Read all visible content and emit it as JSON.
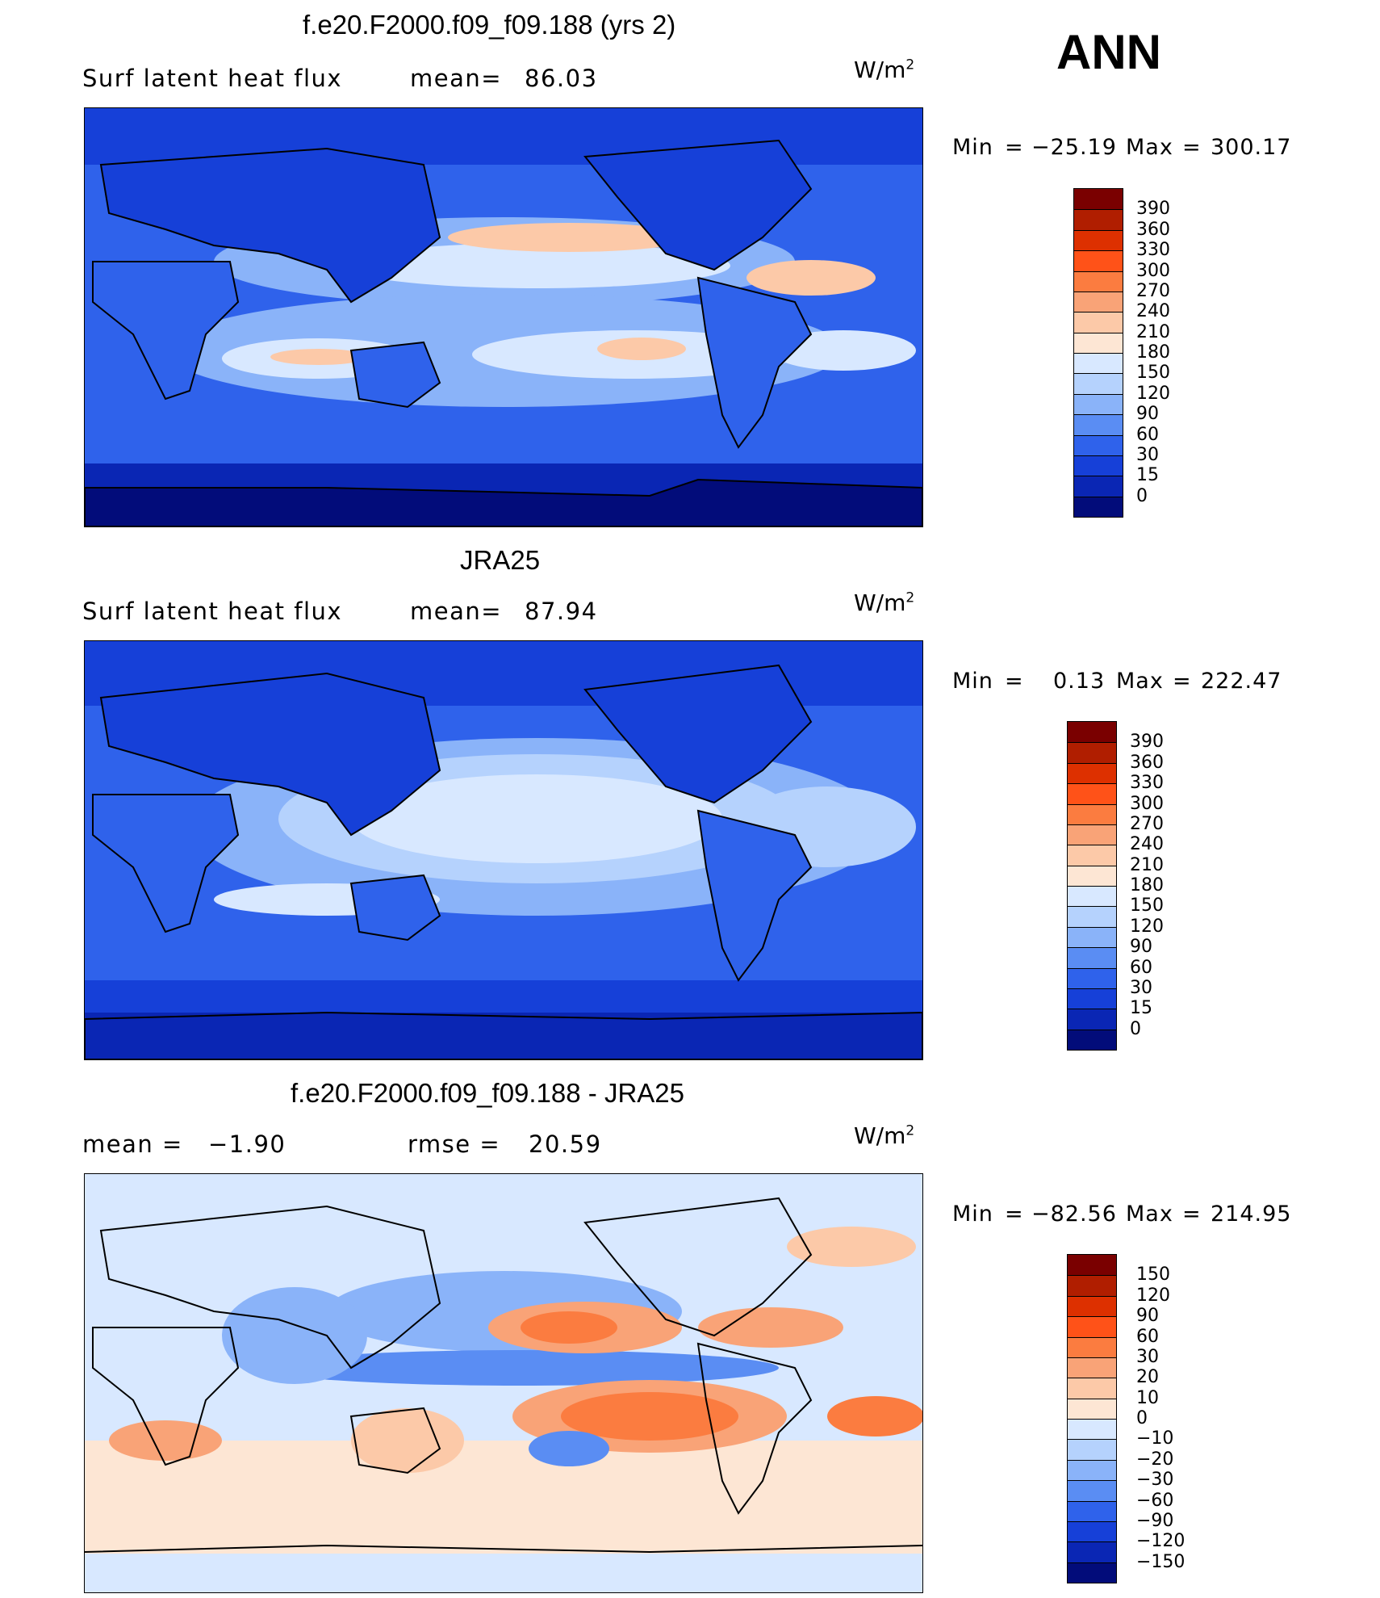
{
  "season": "ANN",
  "panels": [
    {
      "title": "f.e20.F2000.f09_f09.188 (yrs 2)",
      "left_text": "Surf latent heat flux",
      "stat_label": "mean=",
      "stat_value": "86.03",
      "units_base": "W/m",
      "units_exp": "2",
      "min_label": "Min",
      "min_value": "−25.19",
      "max_label": "Max",
      "max_value": "300.17",
      "levels": [
        "390",
        "360",
        "330",
        "300",
        "270",
        "240",
        "210",
        "180",
        "150",
        "120",
        "90",
        "60",
        "30",
        "15",
        "0"
      ],
      "colors": [
        "#7a0000",
        "#b01e00",
        "#dd3000",
        "#ff5218",
        "#fb7c40",
        "#f9a377",
        "#fcc9a8",
        "#fde6d4",
        "#d8e8ff",
        "#b5d2fd",
        "#8ab3f9",
        "#5a8df3",
        "#2f62eb",
        "#1640d8",
        "#0a26b4",
        "#020c7a"
      ]
    },
    {
      "title": "JRA25",
      "left_text": "Surf latent heat flux",
      "stat_label": "mean=",
      "stat_value": "87.94",
      "units_base": "W/m",
      "units_exp": "2",
      "min_label": "Min",
      "min_value": "0.13",
      "max_label": "Max",
      "max_value": "222.47",
      "levels": [
        "390",
        "360",
        "330",
        "300",
        "270",
        "240",
        "210",
        "180",
        "150",
        "120",
        "90",
        "60",
        "30",
        "15",
        "0"
      ],
      "colors": [
        "#7a0000",
        "#b01e00",
        "#dd3000",
        "#ff5218",
        "#fb7c40",
        "#f9a377",
        "#fcc9a8",
        "#fde6d4",
        "#d8e8ff",
        "#b5d2fd",
        "#8ab3f9",
        "#5a8df3",
        "#2f62eb",
        "#1640d8",
        "#0a26b4",
        "#020c7a"
      ]
    },
    {
      "title": "f.e20.F2000.f09_f09.188 - JRA25",
      "left_label": "mean =",
      "left_value": "−1.90",
      "stat_label": "rmse =",
      "stat_value": "20.59",
      "units_base": "W/m",
      "units_exp": "2",
      "min_label": "Min",
      "min_value": "−82.56",
      "max_label": "Max",
      "max_value": "214.95",
      "levels": [
        "150",
        "120",
        "90",
        "60",
        "30",
        "20",
        "10",
        "0",
        "−10",
        "−20",
        "−30",
        "−60",
        "−90",
        "−120",
        "−150"
      ],
      "colors": [
        "#7a0000",
        "#b01e00",
        "#dd3000",
        "#ff5218",
        "#fb7c40",
        "#f9a377",
        "#fcc9a8",
        "#fde6d4",
        "#d8e8ff",
        "#b5d2fd",
        "#8ab3f9",
        "#5a8df3",
        "#2f62eb",
        "#1640d8",
        "#0a26b4",
        "#020c7a"
      ]
    }
  ],
  "chart_data": [
    {
      "type": "heatmap",
      "title": "f.e20.F2000.f09_f09.188 (yrs 2)",
      "variable": "Surf latent heat flux",
      "units": "W/m2",
      "mean": 86.03,
      "min": -25.19,
      "max": 300.17,
      "contour_levels": [
        0,
        15,
        30,
        60,
        90,
        120,
        150,
        180,
        210,
        240,
        270,
        300,
        330,
        360,
        390
      ]
    },
    {
      "type": "heatmap",
      "title": "JRA25",
      "variable": "Surf latent heat flux",
      "units": "W/m2",
      "mean": 87.94,
      "min": 0.13,
      "max": 222.47,
      "contour_levels": [
        0,
        15,
        30,
        60,
        90,
        120,
        150,
        180,
        210,
        240,
        270,
        300,
        330,
        360,
        390
      ]
    },
    {
      "type": "heatmap",
      "title": "f.e20.F2000.f09_f09.188 - JRA25",
      "units": "W/m2",
      "mean": -1.9,
      "rmse": 20.59,
      "min": -82.56,
      "max": 214.95,
      "contour_levels": [
        -150,
        -120,
        -90,
        -60,
        -30,
        -20,
        -10,
        0,
        10,
        20,
        30,
        60,
        90,
        120,
        150
      ]
    }
  ]
}
